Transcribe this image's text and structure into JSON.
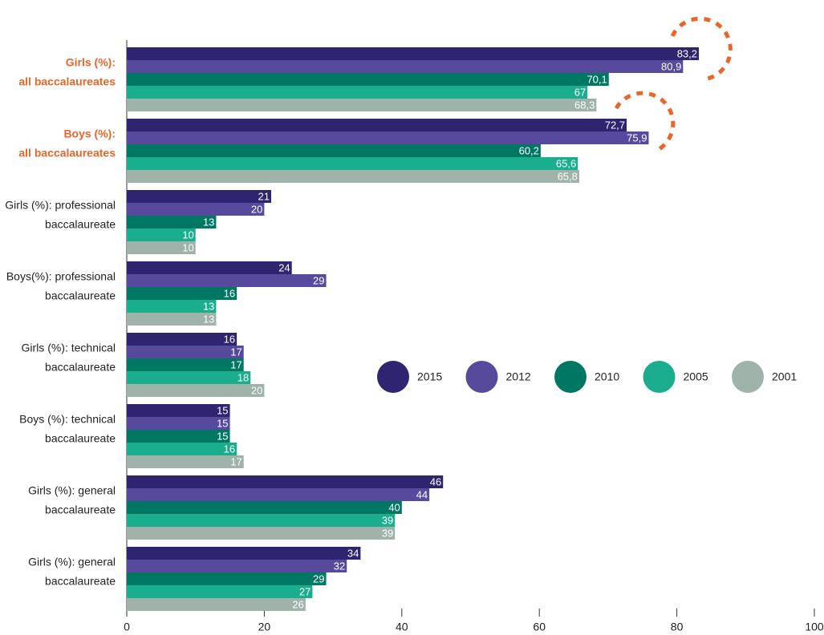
{
  "chart_data": {
    "type": "grouped-horizontal-bar",
    "categories": [
      [
        "Girls (%):",
        "all baccalaureates"
      ],
      [
        "Boys (%):",
        "all baccalaureates"
      ],
      [
        "Girls (%): professional",
        "baccalaureate"
      ],
      [
        "Boys(%): professional",
        "baccalaureate"
      ],
      [
        "Girls (%): technical",
        "baccalaureate"
      ],
      [
        "Boys (%): technical",
        "baccalaureate"
      ],
      [
        "Girls (%): general",
        "baccalaureate"
      ],
      [
        "Girls (%): general",
        "baccalaureate"
      ]
    ],
    "highlighted": [
      0,
      1
    ],
    "highlight_color": "#e8662a",
    "series": [
      {
        "name": "2015",
        "color": "#2e2470",
        "values": [
          83.2,
          72.7,
          21,
          24,
          16,
          15,
          46,
          34
        ],
        "value_labels": [
          "83,2",
          "72,7",
          "21",
          "24",
          "16",
          "15",
          "46",
          "34"
        ]
      },
      {
        "name": "2012",
        "color": "#574a9c",
        "values": [
          80.9,
          75.9,
          20,
          29,
          17,
          15,
          44,
          32
        ],
        "value_labels": [
          "80,9",
          "75,9",
          "20",
          "29",
          "17",
          "15",
          "44",
          "32"
        ]
      },
      {
        "name": "2010",
        "color": "#007762",
        "values": [
          70.1,
          60.2,
          13,
          16,
          17,
          15,
          40,
          29
        ],
        "value_labels": [
          "70,1",
          "60,2",
          "13",
          "16",
          "17",
          "15",
          "40",
          "29"
        ]
      },
      {
        "name": "2005",
        "color": "#1aae8e",
        "values": [
          67,
          65.6,
          10,
          13,
          18,
          16,
          39,
          27
        ],
        "value_labels": [
          "67",
          "65,6",
          "10",
          "13",
          "18",
          "16",
          "39",
          "27"
        ]
      },
      {
        "name": "2001",
        "color": "#9fb3aa",
        "values": [
          68.3,
          65.8,
          10,
          13,
          20,
          17,
          39,
          26
        ],
        "value_labels": [
          "68,3",
          "65,8",
          "10",
          "13",
          "20",
          "17",
          "39",
          "26"
        ]
      }
    ],
    "xlim": [
      0,
      100
    ],
    "xticks": [
      0,
      20,
      40,
      60,
      80,
      100
    ],
    "legend": "right"
  }
}
